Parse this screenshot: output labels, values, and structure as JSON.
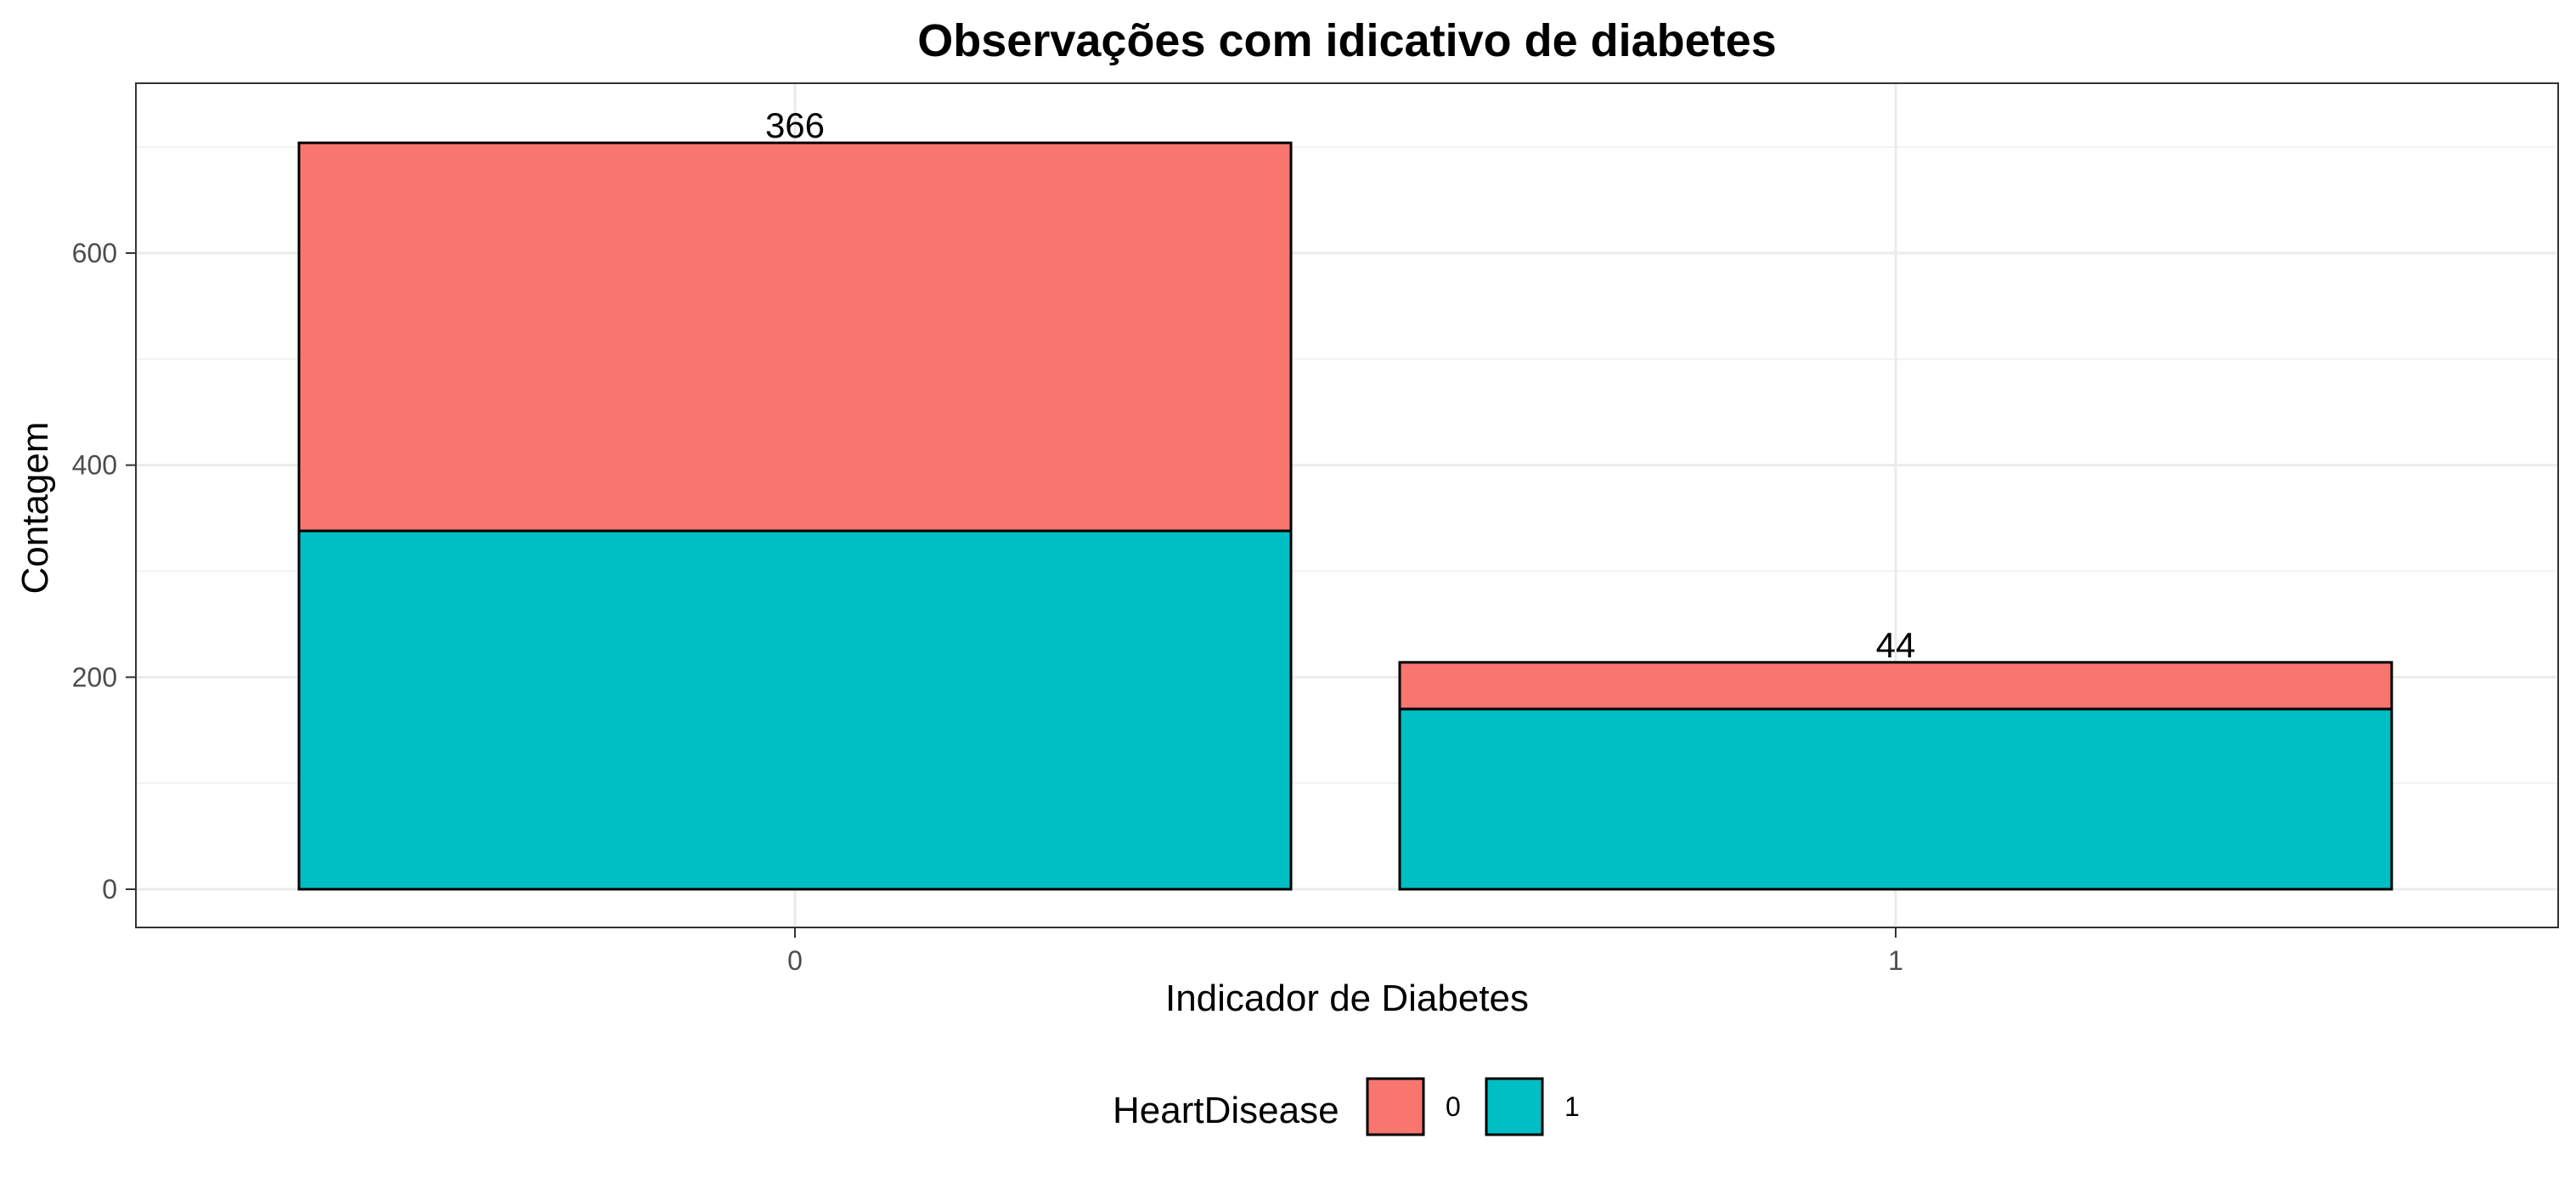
{
  "chart_data": {
    "type": "bar",
    "stacked": true,
    "title": "Observações com idicativo de diabetes",
    "xlabel": "Indicador de Diabetes",
    "ylabel": "Contagem",
    "categories": [
      "0",
      "1"
    ],
    "ylim": [
      0,
      760
    ],
    "yticks": [
      0,
      200,
      400,
      600
    ],
    "grid": true,
    "series": [
      {
        "name": "1",
        "values": [
          338,
          170
        ],
        "color": "#00BFC4"
      },
      {
        "name": "0",
        "values": [
          366,
          44
        ],
        "color": "#F8766D"
      }
    ],
    "legend": {
      "title": "HeartDisease",
      "position": "bottom",
      "entries": [
        {
          "label": "0",
          "color": "#F8766D"
        },
        {
          "label": "1",
          "color": "#00BFC4"
        }
      ]
    }
  }
}
